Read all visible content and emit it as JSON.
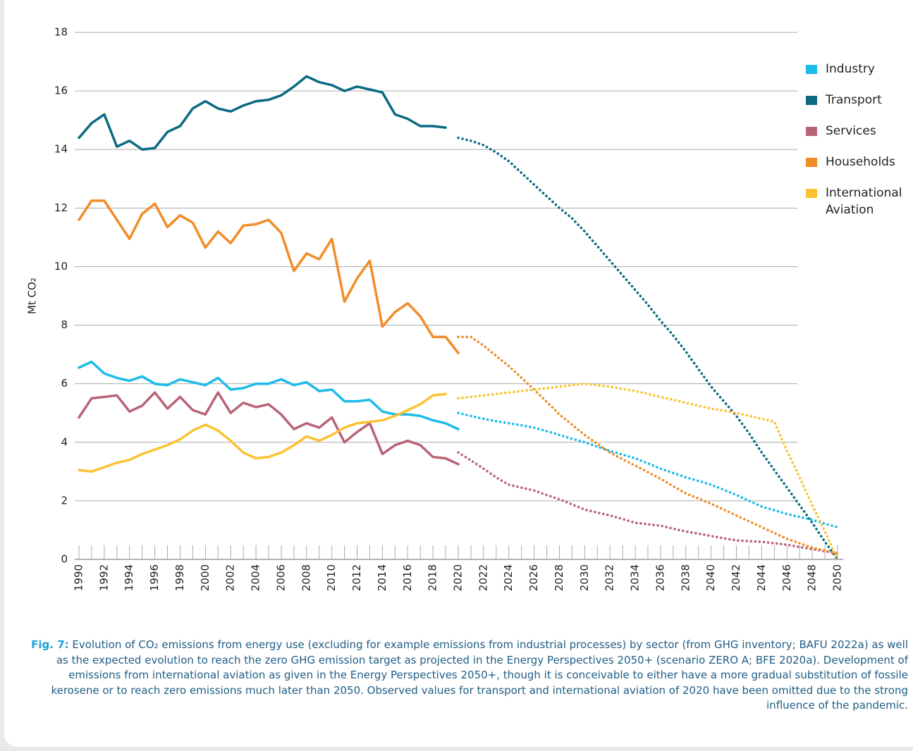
{
  "chart_data": {
    "type": "line",
    "ylabel": "Mt CO₂",
    "caption_label": "Fig. 7:",
    "caption": "Evolution of CO₂ emissions from energy use (excluding for example emissions from industrial processes) by sector (from GHG inventory; BAFU 2022a) as well as the expected evolution to reach the zero GHG emission target as projected in the Energy Perspectives 2050+ (scenario ZERO A; BFE 2020a). Development of emissions from international aviation as given in the Energy Perspectives 2050+, though it is conceivable to either have a more gradual substitution of fossile kerosene or to reach zero emissions much later than 2050. Observed values for transport and international aviation of 2020 have been omitted due to the strong influence of the pandemic.",
    "x": [
      1990,
      1991,
      1992,
      1993,
      1994,
      1995,
      1996,
      1997,
      1998,
      1999,
      2000,
      2001,
      2002,
      2003,
      2004,
      2005,
      2006,
      2007,
      2008,
      2009,
      2010,
      2011,
      2012,
      2013,
      2014,
      2015,
      2016,
      2017,
      2018,
      2019,
      2020,
      2021,
      2022,
      2023,
      2024,
      2025,
      2026,
      2027,
      2028,
      2029,
      2030,
      2031,
      2032,
      2033,
      2034,
      2035,
      2036,
      2037,
      2038,
      2039,
      2040,
      2041,
      2042,
      2043,
      2044,
      2045,
      2046,
      2047,
      2048,
      2049,
      2050
    ],
    "xlim": [
      1990,
      2050
    ],
    "xticks": [
      1990,
      1992,
      1994,
      1996,
      1998,
      2000,
      2002,
      2004,
      2006,
      2008,
      2010,
      2012,
      2014,
      2016,
      2018,
      2020,
      2022,
      2024,
      2026,
      2028,
      2030,
      2032,
      2034,
      2036,
      2038,
      2040,
      2042,
      2044,
      2046,
      2048,
      2050
    ],
    "ylim": [
      0,
      18
    ],
    "yticks": [
      0,
      2,
      4,
      6,
      8,
      10,
      12,
      14,
      16,
      18
    ],
    "grid": true,
    "legend": "right",
    "series": [
      {
        "name": "Industry",
        "color": "#1dbbe9",
        "values": [
          6.55,
          6.75,
          6.35,
          6.2,
          6.1,
          6.25,
          6.0,
          5.95,
          6.15,
          6.05,
          5.95,
          6.2,
          5.8,
          5.85,
          6.0,
          6.0,
          6.15,
          5.95,
          6.05,
          5.75,
          5.8,
          5.4,
          5.4,
          5.45,
          5.05,
          4.95,
          4.95,
          4.9,
          4.75,
          4.65,
          4.45,
          null,
          null,
          null,
          null,
          null,
          null,
          null,
          null,
          null,
          null,
          null,
          null,
          null,
          null,
          null,
          null,
          null,
          null,
          null,
          null,
          null,
          null,
          null,
          null,
          null,
          null,
          null,
          null,
          null,
          null
        ],
        "projection": [
          null,
          null,
          null,
          null,
          null,
          null,
          null,
          null,
          null,
          null,
          null,
          null,
          null,
          null,
          null,
          null,
          null,
          null,
          null,
          null,
          null,
          null,
          null,
          null,
          null,
          null,
          null,
          null,
          null,
          null,
          5.0,
          4.9,
          4.8,
          4.72,
          4.65,
          4.58,
          4.5,
          4.38,
          4.25,
          4.12,
          4.0,
          3.85,
          3.7,
          3.58,
          3.45,
          3.28,
          3.1,
          2.95,
          2.8,
          2.68,
          2.55,
          2.38,
          2.2,
          2.0,
          1.8,
          1.68,
          1.55,
          1.45,
          1.35,
          1.22,
          1.1
        ]
      },
      {
        "name": "Transport",
        "color": "#0b6a82",
        "values": [
          14.4,
          14.9,
          15.2,
          14.1,
          14.3,
          14.0,
          14.05,
          14.6,
          14.8,
          15.4,
          15.65,
          15.4,
          15.3,
          15.5,
          15.65,
          15.7,
          15.85,
          16.15,
          16.5,
          16.3,
          16.2,
          16.0,
          16.15,
          16.05,
          15.95,
          15.2,
          15.05,
          14.8,
          14.8,
          14.75,
          null,
          null,
          null,
          null,
          null,
          null,
          null,
          null,
          null,
          null,
          null,
          null,
          null,
          null,
          null,
          null,
          null,
          null,
          null,
          null,
          null,
          null,
          null,
          null,
          null,
          null,
          null,
          null,
          null,
          null,
          null
        ],
        "projection": [
          null,
          null,
          null,
          null,
          null,
          null,
          null,
          null,
          null,
          null,
          null,
          null,
          null,
          null,
          null,
          null,
          null,
          null,
          null,
          null,
          null,
          null,
          null,
          null,
          null,
          null,
          null,
          null,
          null,
          null,
          14.4,
          14.3,
          14.15,
          13.9,
          13.6,
          13.2,
          12.8,
          12.4,
          12.0,
          11.65,
          11.2,
          10.7,
          10.2,
          9.7,
          9.2,
          8.7,
          8.15,
          7.65,
          7.1,
          6.5,
          5.9,
          5.4,
          4.9,
          4.3,
          3.65,
          3.05,
          2.45,
          1.85,
          1.25,
          0.6,
          0
        ]
      },
      {
        "name": "Services",
        "color": "#b86477",
        "values": [
          4.85,
          5.5,
          5.55,
          5.6,
          5.05,
          5.25,
          5.7,
          5.15,
          5.55,
          5.1,
          4.95,
          5.7,
          5.0,
          5.35,
          5.2,
          5.3,
          4.95,
          4.45,
          4.65,
          4.5,
          4.85,
          4.0,
          4.35,
          4.65,
          3.6,
          3.9,
          4.05,
          3.9,
          3.5,
          3.45,
          3.25,
          null,
          null,
          null,
          null,
          null,
          null,
          null,
          null,
          null,
          null,
          null,
          null,
          null,
          null,
          null,
          null,
          null,
          null,
          null,
          null,
          null,
          null,
          null,
          null,
          null,
          null,
          null,
          null,
          null,
          null
        ],
        "projection": [
          null,
          null,
          null,
          null,
          null,
          null,
          null,
          null,
          null,
          null,
          null,
          null,
          null,
          null,
          null,
          null,
          null,
          null,
          null,
          null,
          null,
          null,
          null,
          null,
          null,
          null,
          null,
          null,
          null,
          null,
          3.65,
          3.38,
          3.1,
          2.8,
          2.55,
          2.45,
          2.35,
          2.2,
          2.05,
          1.88,
          1.7,
          1.6,
          1.5,
          1.38,
          1.25,
          1.2,
          1.15,
          1.05,
          0.95,
          0.88,
          0.8,
          0.72,
          0.65,
          0.62,
          0.6,
          0.55,
          0.5,
          0.42,
          0.35,
          0.28,
          0.2
        ]
      },
      {
        "name": "Households",
        "color": "#f28c28",
        "values": [
          11.6,
          12.25,
          12.25,
          11.6,
          10.95,
          11.8,
          12.15,
          11.35,
          11.75,
          11.5,
          10.65,
          11.2,
          10.8,
          11.4,
          11.45,
          11.6,
          11.15,
          9.85,
          10.45,
          10.25,
          10.95,
          8.8,
          9.6,
          10.2,
          7.95,
          8.45,
          8.75,
          8.3,
          7.6,
          7.6,
          7.05,
          null,
          null,
          null,
          null,
          null,
          null,
          null,
          null,
          null,
          null,
          null,
          null,
          null,
          null,
          null,
          null,
          null,
          null,
          null,
          null,
          null,
          null,
          null,
          null,
          null,
          null,
          null,
          null,
          null,
          null
        ],
        "projection": [
          null,
          null,
          null,
          null,
          null,
          null,
          null,
          null,
          null,
          null,
          null,
          null,
          null,
          null,
          null,
          null,
          null,
          null,
          null,
          null,
          null,
          null,
          null,
          null,
          null,
          null,
          null,
          null,
          null,
          null,
          7.6,
          7.6,
          7.3,
          6.95,
          6.6,
          6.2,
          5.8,
          5.38,
          4.95,
          4.6,
          4.25,
          3.95,
          3.65,
          3.42,
          3.2,
          2.98,
          2.75,
          2.5,
          2.25,
          2.08,
          1.9,
          1.7,
          1.5,
          1.3,
          1.1,
          0.9,
          0.7,
          0.55,
          0.4,
          0.3,
          0.2
        ]
      },
      {
        "name": "International Aviation",
        "color": "#fbc232",
        "values": [
          3.05,
          3.0,
          3.15,
          3.3,
          3.4,
          3.6,
          3.75,
          3.9,
          4.1,
          4.4,
          4.6,
          4.4,
          4.05,
          3.65,
          3.45,
          3.5,
          3.65,
          3.9,
          4.2,
          4.05,
          4.25,
          4.5,
          4.65,
          4.7,
          4.75,
          4.9,
          5.1,
          5.3,
          5.6,
          5.65,
          null,
          null,
          null,
          null,
          null,
          null,
          null,
          null,
          null,
          null,
          null,
          null,
          null,
          null,
          null,
          null,
          null,
          null,
          null,
          null,
          null,
          null,
          null,
          null,
          null,
          null,
          null,
          null,
          null,
          null,
          null
        ],
        "projection": [
          null,
          null,
          null,
          null,
          null,
          null,
          null,
          null,
          null,
          null,
          null,
          null,
          null,
          null,
          null,
          null,
          null,
          null,
          null,
          null,
          null,
          null,
          null,
          null,
          null,
          null,
          null,
          null,
          null,
          null,
          5.5,
          5.55,
          5.6,
          5.65,
          5.7,
          5.75,
          5.8,
          5.85,
          5.9,
          5.95,
          6.0,
          5.95,
          5.9,
          5.82,
          5.75,
          5.65,
          5.55,
          5.45,
          5.35,
          5.25,
          5.15,
          5.08,
          5.0,
          4.9,
          4.8,
          4.7,
          3.7,
          2.8,
          1.85,
          0.95,
          0
        ]
      }
    ]
  }
}
